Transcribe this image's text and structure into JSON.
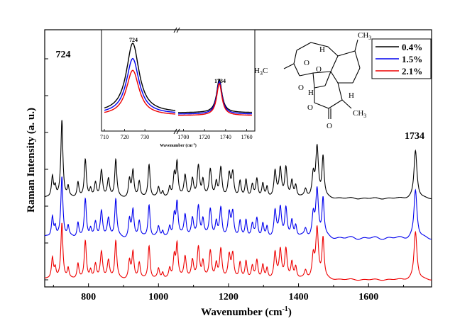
{
  "chart_data": [
    {
      "type": "line",
      "title": "",
      "xlabel": "Wavenumber (cm",
      "xlabel_sup": "-1",
      "xlabel_end": ")",
      "ylabel": "Raman Intensity (a. u.)",
      "xlim": [
        675,
        1780
      ],
      "x_ticks": [
        800,
        1000,
        1200,
        1400,
        1600
      ],
      "y_ticks_shown": false,
      "grid": false,
      "legend_position": "top-right",
      "series": [
        {
          "name": "0.4%",
          "color": "#000000"
        },
        {
          "name": "1.5%",
          "color": "#0000ee"
        },
        {
          "name": "2.1%",
          "color": "#ee0000"
        }
      ],
      "baseline_offsets": [
        2.05,
        1.05,
        0.0
      ],
      "peaks": [
        {
          "x": 697,
          "h": 0.55,
          "w": 3.5
        },
        {
          "x": 705,
          "h": 0.25,
          "w": 3
        },
        {
          "x": 724,
          "h": 1.95,
          "w": 3.5
        },
        {
          "x": 742,
          "h": 0.25,
          "w": 3
        },
        {
          "x": 770,
          "h": 0.4,
          "w": 3.5
        },
        {
          "x": 791,
          "h": 0.95,
          "w": 3.5
        },
        {
          "x": 806,
          "h": 0.2,
          "w": 3
        },
        {
          "x": 820,
          "h": 0.35,
          "w": 3.5
        },
        {
          "x": 837,
          "h": 0.7,
          "w": 4
        },
        {
          "x": 857,
          "h": 0.45,
          "w": 4
        },
        {
          "x": 878,
          "h": 0.95,
          "w": 3.5
        },
        {
          "x": 917,
          "h": 0.45,
          "w": 3.5
        },
        {
          "x": 927,
          "h": 0.65,
          "w": 3.5
        },
        {
          "x": 945,
          "h": 0.4,
          "w": 3.5
        },
        {
          "x": 973,
          "h": 0.85,
          "w": 3.5
        },
        {
          "x": 1000,
          "h": 0.25,
          "w": 3.5
        },
        {
          "x": 1012,
          "h": 0.15,
          "w": 3
        },
        {
          "x": 1032,
          "h": 0.25,
          "w": 3.5
        },
        {
          "x": 1045,
          "h": 0.55,
          "w": 3.5
        },
        {
          "x": 1053,
          "h": 0.85,
          "w": 3.5
        },
        {
          "x": 1076,
          "h": 0.55,
          "w": 4
        },
        {
          "x": 1097,
          "h": 0.45,
          "w": 4
        },
        {
          "x": 1114,
          "h": 0.8,
          "w": 4
        },
        {
          "x": 1127,
          "h": 0.4,
          "w": 3.5
        },
        {
          "x": 1148,
          "h": 0.7,
          "w": 4
        },
        {
          "x": 1165,
          "h": 0.35,
          "w": 3.5
        },
        {
          "x": 1178,
          "h": 0.75,
          "w": 4
        },
        {
          "x": 1202,
          "h": 0.55,
          "w": 4
        },
        {
          "x": 1212,
          "h": 0.6,
          "w": 4
        },
        {
          "x": 1233,
          "h": 0.4,
          "w": 3.5
        },
        {
          "x": 1250,
          "h": 0.45,
          "w": 3.5
        },
        {
          "x": 1268,
          "h": 0.3,
          "w": 3.5
        },
        {
          "x": 1281,
          "h": 0.45,
          "w": 3.5
        },
        {
          "x": 1298,
          "h": 0.35,
          "w": 3.5
        },
        {
          "x": 1310,
          "h": 0.25,
          "w": 3
        },
        {
          "x": 1333,
          "h": 0.65,
          "w": 4
        },
        {
          "x": 1348,
          "h": 0.7,
          "w": 4
        },
        {
          "x": 1364,
          "h": 0.75,
          "w": 4
        },
        {
          "x": 1381,
          "h": 0.4,
          "w": 3.5
        },
        {
          "x": 1392,
          "h": 0.3,
          "w": 3.5
        },
        {
          "x": 1420,
          "h": 0.2,
          "w": 4
        },
        {
          "x": 1442,
          "h": 0.55,
          "w": 4
        },
        {
          "x": 1453,
          "h": 1.25,
          "w": 4.5
        },
        {
          "x": 1470,
          "h": 1.0,
          "w": 3.5
        },
        {
          "x": 1734,
          "h": 1.2,
          "w": 5
        }
      ]
    },
    {
      "type": "line",
      "title": "",
      "xlabel": "Wavenumber (cm",
      "xlabel_sup": "-1",
      "xlabel_end": ")",
      "broken_x_axis": true,
      "segments": [
        {
          "xlim": [
            710,
            745
          ],
          "x_ticks": [
            710,
            720,
            730
          ]
        },
        {
          "xlim": [
            1695,
            1765
          ],
          "x_ticks": [
            1700,
            1720,
            1740,
            1760
          ]
        }
      ],
      "series": [
        {
          "name": "0.4%",
          "color": "#000000",
          "peak_724": 1.0,
          "peak_1734": 0.48
        },
        {
          "name": "1.5%",
          "color": "#0000ee",
          "peak_724": 0.8,
          "peak_1734": 0.47
        },
        {
          "name": "2.1%",
          "color": "#ee0000",
          "peak_724": 0.65,
          "peak_1734": 0.46
        }
      ]
    }
  ],
  "annotations": {
    "main_peak_1": "724",
    "main_peak_2": "1734",
    "inset_peak_1": "724",
    "inset_peak_2": "1734"
  },
  "molecule": {
    "labels": [
      "CH3",
      "H",
      "H3C",
      "O",
      "O",
      "O",
      "O",
      "O",
      "H",
      "CH3",
      "H"
    ]
  }
}
